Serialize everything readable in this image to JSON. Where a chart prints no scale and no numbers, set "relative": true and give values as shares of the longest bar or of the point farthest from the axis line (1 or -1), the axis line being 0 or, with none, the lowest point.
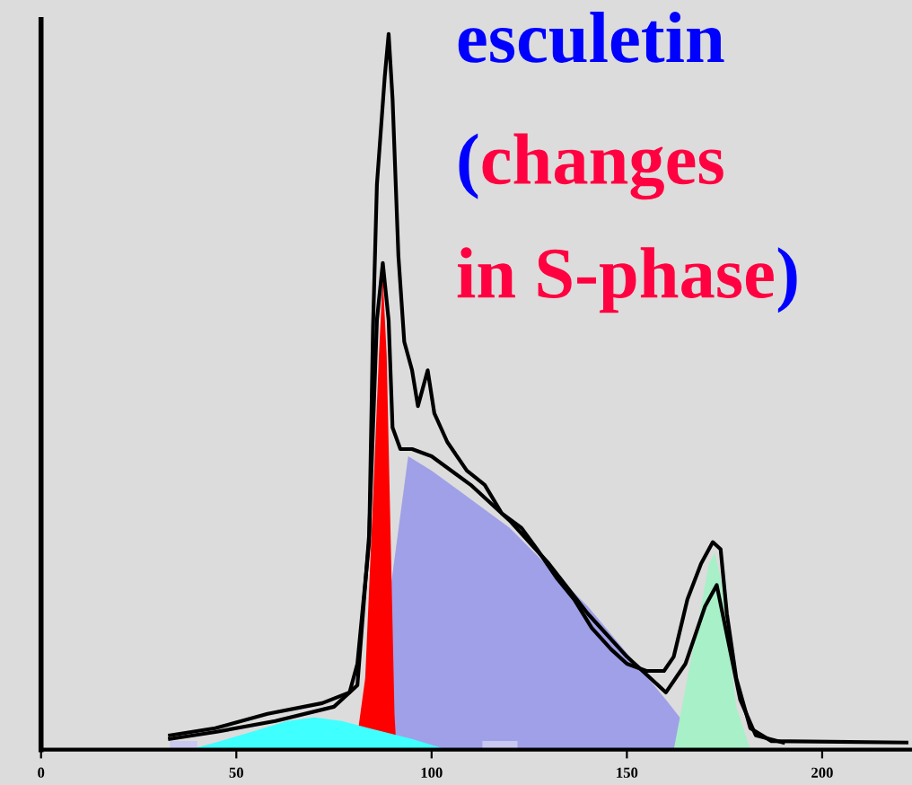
{
  "chart_data": {
    "type": "area",
    "relative": true,
    "annotations": [
      "esculetin",
      "(changes in S-phase)"
    ],
    "xlim": [
      0,
      223
    ],
    "xticks": [
      0,
      50,
      100,
      150,
      200
    ],
    "series": [
      {
        "color": "#a0a0e8",
        "x": [
          84,
          94,
          100,
          120,
          140,
          160,
          170
        ],
        "values": [
          0,
          0.41,
          0.39,
          0.31,
          0.2,
          0.07,
          0
        ]
      },
      {
        "color": "#ff0000",
        "x": [
          80.5,
          83,
          85,
          86.5,
          87.5,
          88.5,
          89.5,
          90.5,
          91
        ],
        "values": [
          0,
          0.1,
          0.35,
          0.55,
          0.66,
          0.55,
          0.3,
          0.05,
          0
        ]
      },
      {
        "color": "#a8f0c8",
        "x": [
          162,
          165.5,
          169,
          171,
          172.5,
          174,
          176,
          178,
          181.6
        ],
        "values": [
          0,
          0.1,
          0.2,
          0.26,
          0.275,
          0.24,
          0.15,
          0.06,
          0
        ]
      },
      {
        "color": "#40ffff",
        "x": [
          37.7,
          44.6,
          54,
          63,
          70,
          77,
          84,
          95,
          104
        ],
        "values": [
          0,
          0.01,
          0.025,
          0.04,
          0.045,
          0.04,
          0.03,
          0.015,
          0
        ]
      },
      {
        "color": "#c8c8f0",
        "x": [
          33,
          33,
          40,
          40
        ],
        "values": [
          0,
          0.012,
          0.012,
          0
        ]
      },
      {
        "color": "#c8c8f0",
        "x": [
          113,
          113,
          122,
          122
        ],
        "values": [
          0,
          0.012,
          0.012,
          0
        ]
      },
      {
        "type": "line",
        "color": "#000000",
        "x": [
          33,
          45,
          60,
          75,
          81,
          84,
          86,
          87.5,
          89,
          90,
          92,
          95,
          100,
          110,
          120,
          130,
          140,
          150,
          160,
          165,
          170,
          173,
          176,
          179,
          183,
          190
        ],
        "values": [
          0.015,
          0.025,
          0.04,
          0.06,
          0.09,
          0.3,
          0.6,
          0.68,
          0.6,
          0.45,
          0.42,
          0.42,
          0.41,
          0.37,
          0.32,
          0.26,
          0.19,
          0.13,
          0.08,
          0.12,
          0.2,
          0.23,
          0.15,
          0.07,
          0.02,
          0.01
        ]
      },
      {
        "type": "line",
        "color": "#000000",
        "x": [
          33,
          44.6,
          58,
          72,
          79,
          81,
          84,
          85,
          86,
          88,
          89,
          90,
          91.5,
          93,
          95,
          96.5,
          99,
          100.7,
          104,
          109,
          113.6,
          118,
          123,
          127,
          132,
          136.5,
          141,
          146,
          150,
          155,
          159.5,
          162,
          165.5,
          169,
          172,
          174,
          175.6,
          178,
          181.6,
          187,
          221.6
        ],
        "values": [
          0.02,
          0.03,
          0.05,
          0.065,
          0.08,
          0.12,
          0.29,
          0.59,
          0.79,
          0.94,
          1,
          0.91,
          0.69,
          0.57,
          0.53,
          0.48,
          0.53,
          0.47,
          0.43,
          0.39,
          0.37,
          0.33,
          0.31,
          0.28,
          0.24,
          0.21,
          0.17,
          0.14,
          0.12,
          0.11,
          0.11,
          0.13,
          0.21,
          0.26,
          0.29,
          0.28,
          0.19,
          0.1,
          0.03,
          0.012,
          0.01
        ]
      }
    ]
  }
}
